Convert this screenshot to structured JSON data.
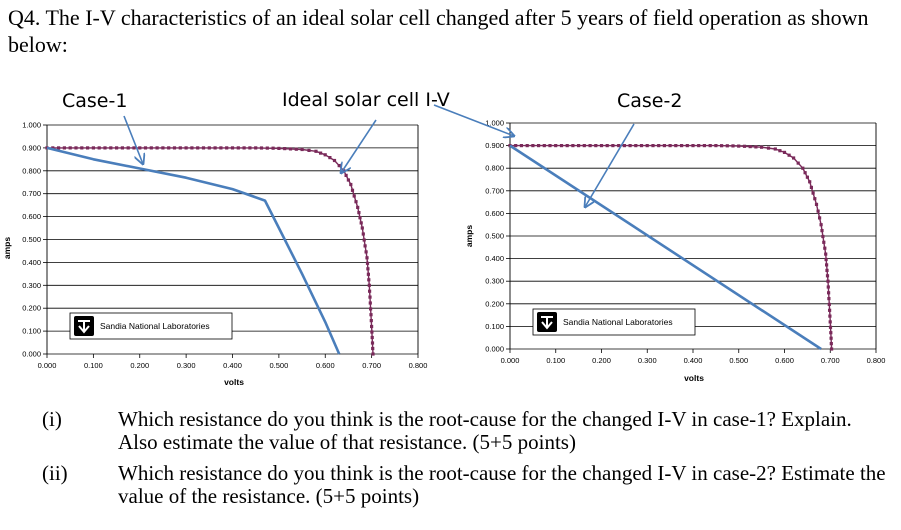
{
  "question": {
    "text": "Q4. The I-V characteristics of an ideal solar cell changed after 5 years of field operation as shown below:"
  },
  "items": [
    {
      "num": "(i)",
      "text": "Which resistance do you think is the root-cause for the changed I-V in case-1? Explain. Also estimate the value of that resistance. (5+5 points)"
    },
    {
      "num": "(ii)",
      "text": "Which resistance do you think is the root-cause for the changed I-V in case-2? Estimate the value of the resistance. (5+5 points)"
    }
  ],
  "annotations": {
    "case1": "Case-1",
    "ideal": "Ideal solar cell I-V",
    "case2": "Case-2"
  },
  "chart_data": [
    {
      "type": "line",
      "title": "",
      "xlabel": "volts",
      "ylabel": "amps",
      "xlim": [
        0,
        0.8
      ],
      "ylim": [
        0,
        1.0
      ],
      "x_ticks": [
        "0.000",
        "0.100",
        "0.200",
        "0.300",
        "0.400",
        "0.500",
        "0.600",
        "0.700",
        "0.800"
      ],
      "y_ticks": [
        "0.000",
        "0.100",
        "0.200",
        "0.300",
        "0.400",
        "0.500",
        "0.600",
        "0.700",
        "0.800",
        "0.900",
        "1.000"
      ],
      "logo": "Sandia National Laboratories",
      "series": [
        {
          "name": "Ideal solar cell I-V",
          "color": "#7a2a5a",
          "x": [
            0.0,
            0.05,
            0.1,
            0.15,
            0.2,
            0.25,
            0.3,
            0.35,
            0.4,
            0.45,
            0.5,
            0.55,
            0.58,
            0.6,
            0.62,
            0.64,
            0.655,
            0.67,
            0.68,
            0.69,
            0.695,
            0.7,
            0.703
          ],
          "y": [
            0.9,
            0.9,
            0.9,
            0.9,
            0.9,
            0.9,
            0.9,
            0.9,
            0.9,
            0.9,
            0.898,
            0.893,
            0.885,
            0.87,
            0.845,
            0.8,
            0.74,
            0.64,
            0.55,
            0.42,
            0.3,
            0.12,
            0.0
          ]
        },
        {
          "name": "Case-1",
          "color": "#4a7ebb",
          "x": [
            0.0,
            0.1,
            0.2,
            0.3,
            0.4,
            0.47,
            0.5,
            0.55,
            0.6,
            0.63
          ],
          "y": [
            0.9,
            0.85,
            0.81,
            0.77,
            0.72,
            0.67,
            0.55,
            0.35,
            0.14,
            0.0
          ]
        }
      ]
    },
    {
      "type": "line",
      "title": "",
      "xlabel": "volts",
      "ylabel": "amps",
      "xlim": [
        0,
        0.8
      ],
      "ylim": [
        0,
        1.0
      ],
      "x_ticks": [
        "0.000",
        "0.100",
        "0.200",
        "0.300",
        "0.400",
        "0.500",
        "0.600",
        "0.700",
        "0.800"
      ],
      "y_ticks": [
        "0.000",
        "0.100",
        "0.200",
        "0.300",
        "0.400",
        "0.500",
        "0.600",
        "0.700",
        "0.800",
        "0.900",
        "1.000"
      ],
      "logo": "Sandia National Laboratories",
      "series": [
        {
          "name": "Ideal solar cell I-V",
          "color": "#7a2a5a",
          "x": [
            0.0,
            0.05,
            0.1,
            0.15,
            0.2,
            0.25,
            0.3,
            0.35,
            0.4,
            0.45,
            0.5,
            0.55,
            0.58,
            0.6,
            0.62,
            0.64,
            0.655,
            0.67,
            0.68,
            0.69,
            0.695,
            0.7,
            0.703
          ],
          "y": [
            0.9,
            0.9,
            0.9,
            0.9,
            0.9,
            0.9,
            0.9,
            0.9,
            0.9,
            0.9,
            0.898,
            0.893,
            0.885,
            0.87,
            0.845,
            0.8,
            0.74,
            0.64,
            0.55,
            0.42,
            0.3,
            0.12,
            0.0
          ]
        },
        {
          "name": "Case-2",
          "color": "#4a7ebb",
          "x": [
            0.0,
            0.68
          ],
          "y": [
            0.9,
            0.0
          ]
        }
      ]
    }
  ]
}
